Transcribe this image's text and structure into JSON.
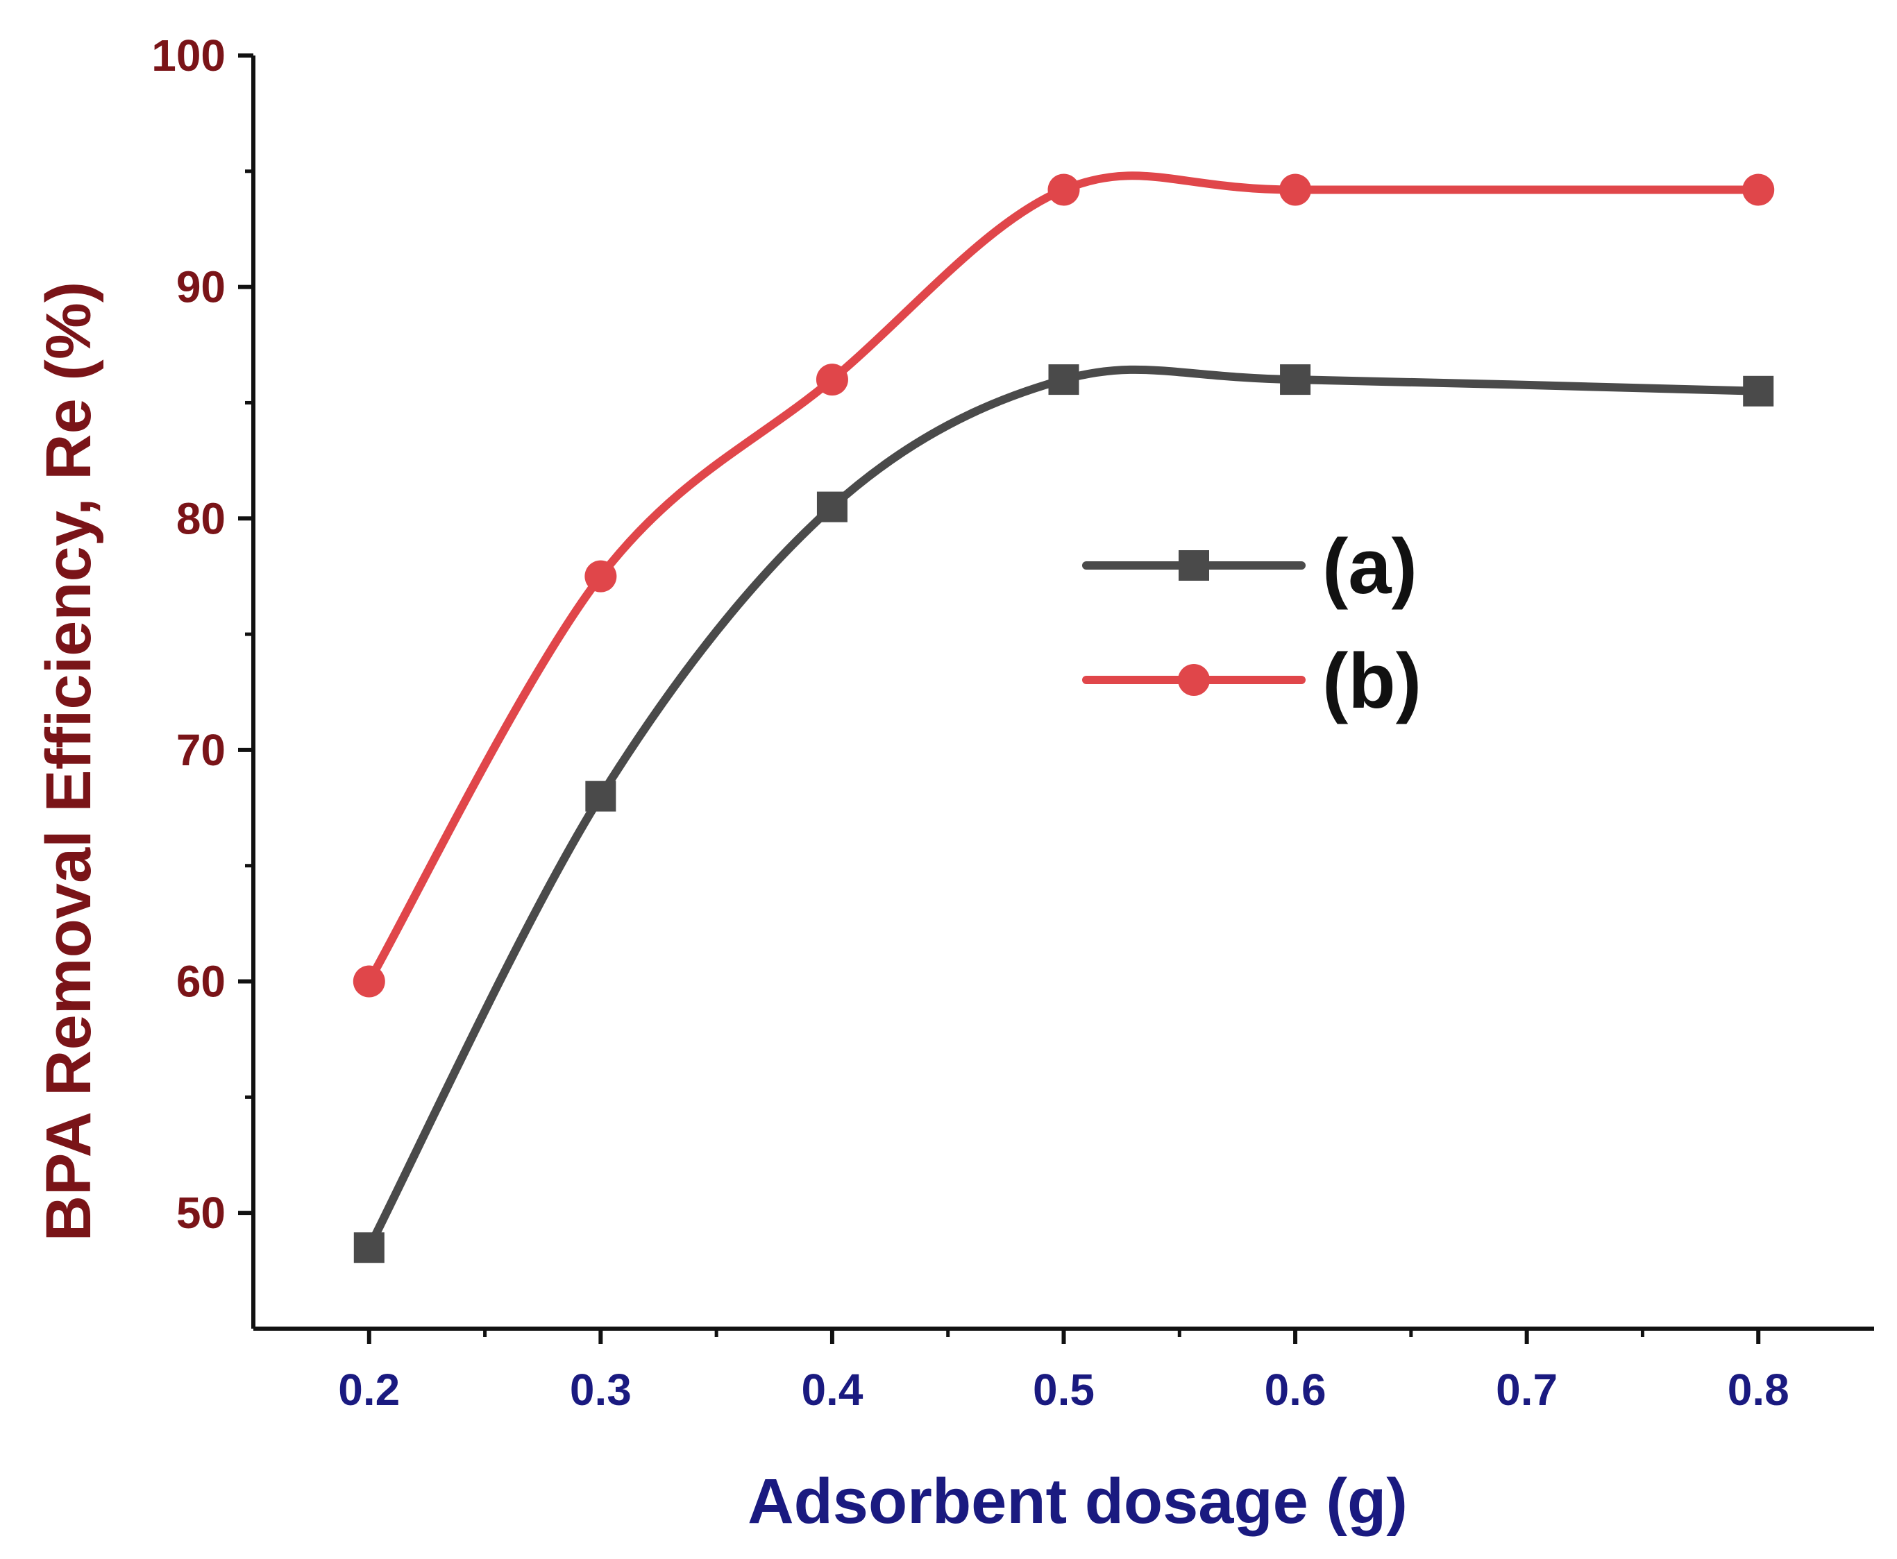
{
  "chart_data": {
    "type": "line",
    "title": "",
    "xlabel": "Adsorbent dosage (g)",
    "ylabel": "BPA Removal Efficiency, Re (%)",
    "xlim": [
      0.15,
      0.85
    ],
    "ylim": [
      45,
      100
    ],
    "xticks": [
      0.2,
      0.3,
      0.4,
      0.5,
      0.6,
      0.7,
      0.8
    ],
    "xtick_labels": [
      "0.2",
      "0.3",
      "0.4",
      "0.5",
      "0.6",
      "0.7",
      "0.8"
    ],
    "yticks": [
      50,
      60,
      70,
      80,
      90,
      100
    ],
    "ytick_labels": [
      "50",
      "60",
      "70",
      "80",
      "90",
      "100"
    ],
    "y_minor_ticks": [
      55,
      65,
      75,
      85,
      95
    ],
    "x_minor_ticks": [
      0.25,
      0.35,
      0.45,
      0.55,
      0.65,
      0.75
    ],
    "grid": false,
    "legend_position": "center-right",
    "series": [
      {
        "name": "(a)",
        "color": "#4a4a4a",
        "marker": "square",
        "x": [
          0.2,
          0.3,
          0.4,
          0.5,
          0.6,
          0.8
        ],
        "values": [
          48.5,
          68,
          80.5,
          86,
          86,
          85.5
        ]
      },
      {
        "name": "(b)",
        "color": "#e0464a",
        "marker": "circle",
        "x": [
          0.2,
          0.3,
          0.4,
          0.5,
          0.6,
          0.8
        ],
        "values": [
          60,
          77.5,
          86,
          94.2,
          94.2,
          94.2
        ]
      }
    ],
    "colors": {
      "ylabel": "#7a1418",
      "xlabel": "#1a1a80",
      "yticks": "#7a1418",
      "xticks": "#1a1a80",
      "axes": "#111111",
      "legend_text": "#111111"
    }
  }
}
